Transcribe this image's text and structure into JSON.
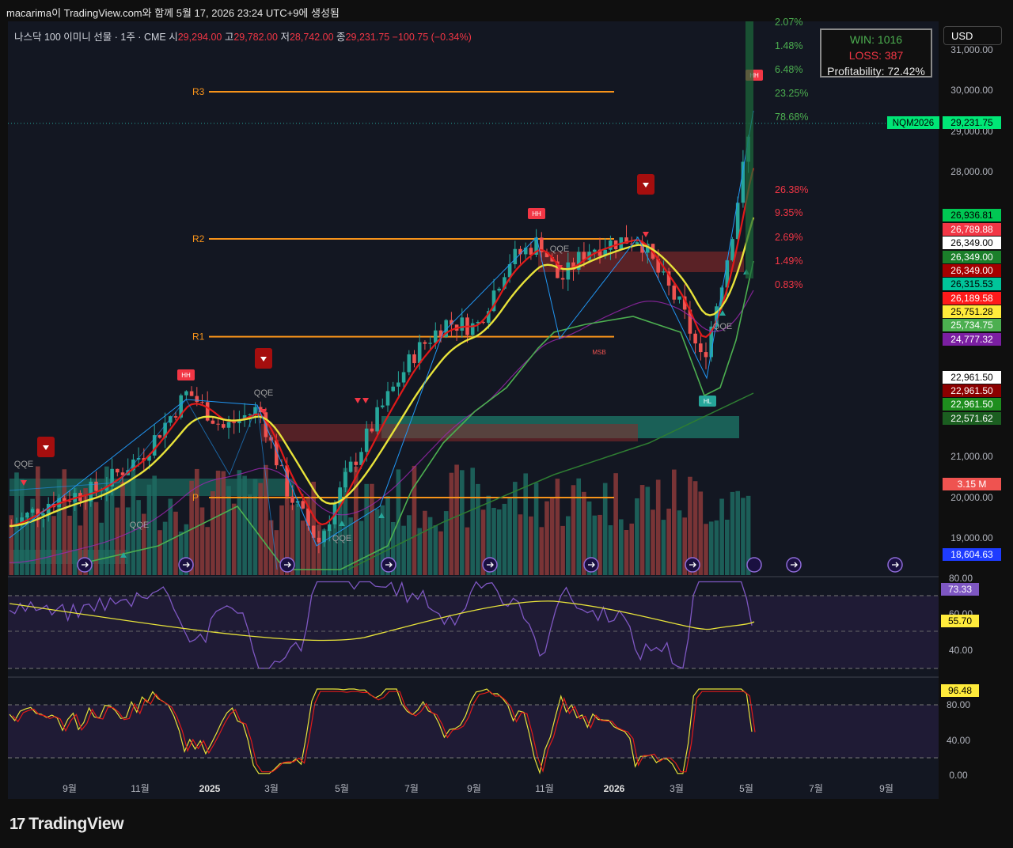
{
  "header": {
    "created_line": "macarima이 TradingView.com와 함께 5월 17, 2026 23:24 UTC+9에 생성됨",
    "symbol": "나스닥 100 이미니 선물 · 1주 · CME",
    "open_label": "시",
    "open": "29,294.00",
    "high_label": "고",
    "high": "29,782.00",
    "low_label": "저",
    "low": "28,742.00",
    "close_label": "종",
    "close": "29,231.75",
    "change": "−100.75 (−0.34%)"
  },
  "stats": {
    "win": "WIN: 1016",
    "loss": "LOSS: 387",
    "profitability": "Profitability: 72.42%"
  },
  "currency": "USD",
  "logo": "TradingView",
  "colors": {
    "up": "#26a69a",
    "down": "#ef5350",
    "accent": "#f7931a",
    "ma_yellow": "#e8e33a",
    "ma_red": "#e01a1a",
    "ma_green": "#4caf50",
    "rsi": "#7e57c2"
  },
  "chart_data": {
    "type": "candlestick",
    "price_axis": {
      "ticks": [
        "31,000.00",
        "30,000.00",
        "29,000.00",
        "28,000.00",
        "21,000.00",
        "20,000.00",
        "19,000.00"
      ],
      "ylim": [
        18500,
        31200
      ]
    },
    "time_axis": {
      "ticks": [
        "9월",
        "11월",
        "2025",
        "3월",
        "5월",
        "7월",
        "9월",
        "11월",
        "2026",
        "3월",
        "5월",
        "7월",
        "9월"
      ]
    },
    "pivot_levels": [
      {
        "name": "R3",
        "value": 29960
      },
      {
        "name": "R2",
        "value": 26349
      },
      {
        "name": "R1",
        "value": 23950
      },
      {
        "name": "P",
        "value": 20000
      }
    ],
    "pct_labels": [
      "2.07%",
      "1.48%",
      "6.48%",
      "23.25%",
      "78.68%",
      "26.38%",
      "9.35%",
      "2.69%",
      "1.49%",
      "0.83%"
    ],
    "price_tags": [
      {
        "label": "NQM2026",
        "value": "29,231.75",
        "color": "#00e676",
        "text": "#000"
      },
      {
        "value": "26,936.81",
        "color": "#00c853",
        "text": "#000"
      },
      {
        "value": "26,789.88",
        "color": "#f23645",
        "text": "#fff"
      },
      {
        "value": "26,349.00",
        "color": "#ffffff",
        "text": "#000"
      },
      {
        "value": "26,349.00",
        "color": "#1b7f2a",
        "text": "#fff"
      },
      {
        "value": "26,349.00",
        "color": "#a50000",
        "text": "#fff"
      },
      {
        "value": "26,315.53",
        "color": "#00c49a",
        "text": "#000"
      },
      {
        "value": "26,189.58",
        "color": "#ff1a1a",
        "text": "#fff"
      },
      {
        "value": "25,751.28",
        "color": "#ffeb3b",
        "text": "#000"
      },
      {
        "value": "25,734.75",
        "color": "#4caf50",
        "text": "#fff"
      },
      {
        "value": "24,777.32",
        "color": "#7b1fa2",
        "text": "#fff"
      },
      {
        "value": "22,961.50",
        "color": "#ffffff",
        "text": "#000"
      },
      {
        "value": "22,961.50",
        "color": "#8b0000",
        "text": "#fff"
      },
      {
        "value": "22,961.50",
        "color": "#1e8e1e",
        "text": "#fff"
      },
      {
        "value": "22,571.62",
        "color": "#1b5e20",
        "text": "#fff"
      },
      {
        "value": "3.15 M",
        "color": "#ef5350",
        "text": "#fff"
      },
      {
        "value": "18,604.63",
        "color": "#1e3cff",
        "text": "#fff"
      }
    ],
    "labels": [
      "HH",
      "HH",
      "HH",
      "HL",
      "QQE",
      "MSB"
    ],
    "rsi": {
      "ticks": [
        "80.00",
        "60.00",
        "40.00"
      ],
      "value": "73.33",
      "signal": "55.70"
    },
    "stoch": {
      "ticks": [
        "80.00",
        "40.00",
        "0.00"
      ],
      "value": "96.48"
    }
  }
}
